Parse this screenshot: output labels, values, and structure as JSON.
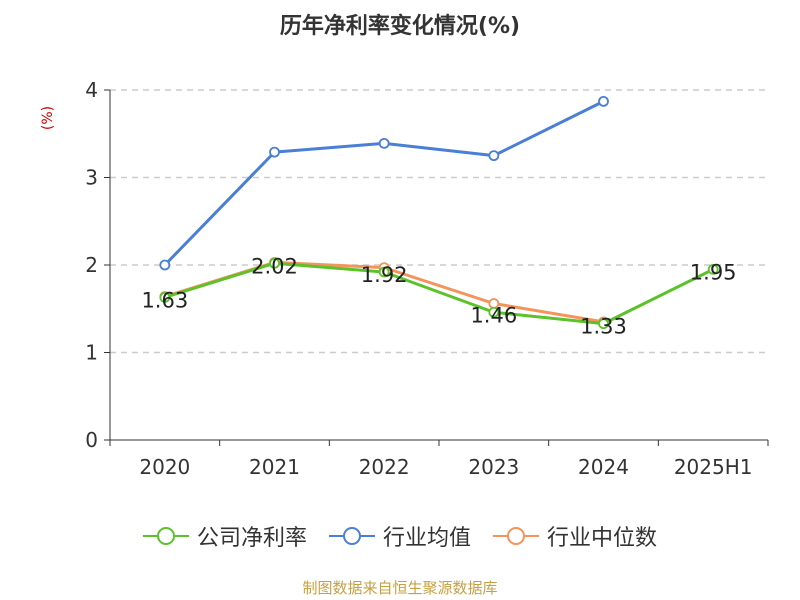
{
  "title": "历年净利率变化情况(%)",
  "y_unit": "(%)",
  "source": "制图数据来自恒生聚源数据库",
  "colors": {
    "company": "#5cc22a",
    "industry_avg": "#4a7fd6",
    "industry_median": "#f4935a",
    "grid": "#cccccc",
    "axis": "#333333",
    "unit": "#cc0000",
    "source": "#c8a040"
  },
  "chart_data": {
    "type": "line",
    "title": "历年净利率变化情况(%)",
    "ylabel": "(%)",
    "ylim": [
      0,
      4
    ],
    "yticks": [
      0,
      1,
      2,
      3,
      4
    ],
    "categories": [
      "2020",
      "2021",
      "2022",
      "2023",
      "2024",
      "2025H1"
    ],
    "grid": "horizontal dashed",
    "legend": "bottom",
    "series": [
      {
        "name": "公司净利率",
        "color": "#5cc22a",
        "values": [
          1.63,
          2.02,
          1.92,
          1.46,
          1.33,
          1.95
        ],
        "labels": [
          "1.63",
          "2.02",
          "1.92",
          "1.46",
          "1.33",
          "1.95"
        ]
      },
      {
        "name": "行业均值",
        "color": "#4a7fd6",
        "values": [
          2.0,
          3.29,
          3.39,
          3.25,
          3.87,
          null
        ],
        "labels": null
      },
      {
        "name": "行业中位数",
        "color": "#f4935a",
        "values": [
          1.64,
          2.03,
          1.97,
          1.56,
          1.35,
          null
        ],
        "labels": null
      }
    ]
  }
}
